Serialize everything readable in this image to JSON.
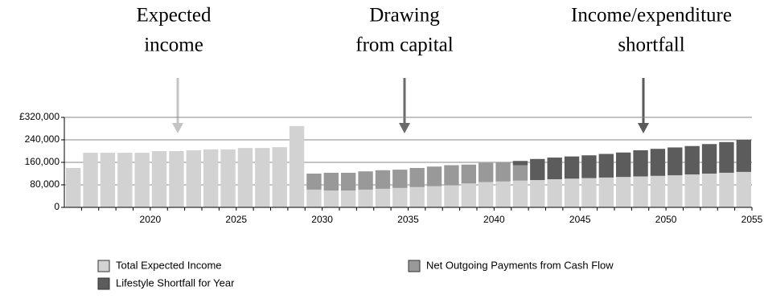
{
  "chart_data": {
    "type": "bar",
    "annotations": [
      {
        "lines": [
          "Expected",
          "income"
        ],
        "color": "#c4c4c4"
      },
      {
        "lines": [
          "Drawing",
          "from capital"
        ],
        "color": "#6a6a6a"
      },
      {
        "lines": [
          "Income/expenditure",
          "shortfall"
        ],
        "color": "#5a5a5a"
      }
    ],
    "categories": [
      null,
      null,
      null,
      null,
      "2020",
      null,
      null,
      null,
      null,
      "2025",
      null,
      null,
      null,
      null,
      "2030",
      null,
      null,
      null,
      null,
      "2035",
      null,
      null,
      null,
      null,
      "2040",
      null,
      null,
      null,
      null,
      "2045",
      null,
      null,
      null,
      null,
      "2050",
      null,
      null,
      null,
      null,
      "2055"
    ],
    "stacked": true,
    "series": [
      {
        "name": "Total Expected Income",
        "color": "#d2d2d2",
        "values": [
          140000,
          194000,
          194000,
          194000,
          194000,
          200000,
          200000,
          203000,
          206000,
          206000,
          211000,
          211000,
          214000,
          289000,
          63000,
          60000,
          60000,
          63000,
          66000,
          69000,
          72000,
          75000,
          78000,
          85000,
          90000,
          92000,
          95000,
          97000,
          100000,
          102000,
          104000,
          106000,
          108000,
          110000,
          112000,
          114000,
          117000,
          120000,
          123000,
          126000
        ]
      },
      {
        "name": "Net Outgoing Payments from Cash Flow",
        "color": "#999999",
        "values": [
          null,
          null,
          null,
          null,
          null,
          null,
          null,
          null,
          null,
          null,
          null,
          null,
          null,
          null,
          57000,
          63000,
          63000,
          65000,
          66000,
          65000,
          68000,
          70000,
          72000,
          67000,
          68000,
          68000,
          55000,
          null,
          null,
          null,
          null,
          null,
          null,
          null,
          null,
          null,
          null,
          null,
          null,
          null
        ]
      },
      {
        "name": "Lifestyle Shortfall for Year",
        "color": "#5c5c5c",
        "values": [
          null,
          null,
          null,
          null,
          null,
          null,
          null,
          null,
          null,
          null,
          null,
          null,
          null,
          null,
          null,
          null,
          null,
          null,
          null,
          null,
          null,
          null,
          null,
          null,
          null,
          null,
          15000,
          75000,
          77000,
          79000,
          81000,
          84000,
          87000,
          93000,
          96000,
          99000,
          101000,
          105000,
          109000,
          114000
        ]
      }
    ],
    "ylim": [
      0,
      320000
    ],
    "yticks": [
      0,
      {
        "value": 80000,
        "label": "80,000"
      },
      {
        "value": 160000,
        "label": "160,000"
      },
      {
        "value": 240000,
        "label": "240,000"
      },
      {
        "value": 320000,
        "label": "£320,000"
      }
    ],
    "grid": true
  }
}
